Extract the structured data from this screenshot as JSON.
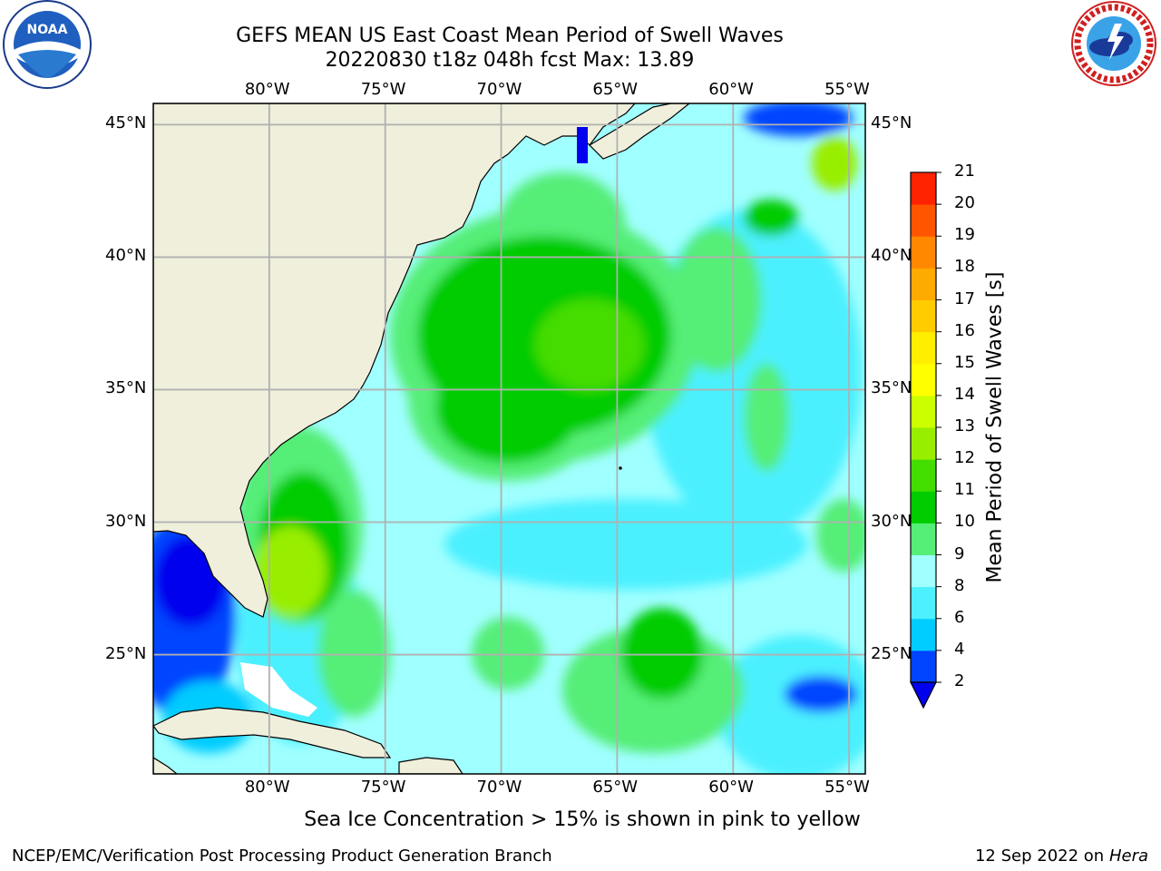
{
  "title": "GEFS MEAN US East Coast Mean Period of Swell Waves",
  "subtitle_line": "20220830 t18z 048h fcst   Max: 13.89",
  "ice_note": "Sea Ice Concentration > 15% is shown in pink to yellow",
  "footer": {
    "left": "NCEP/EMC/Verification Post Processing Product Generation Branch",
    "date": "12 Sep 2022 on",
    "host": "Hera"
  },
  "logos": {
    "noaa": {
      "icon": "noaa-logo-icon",
      "text": "NOAA"
    },
    "nws": {
      "icon": "nws-logo-icon"
    }
  },
  "map": {
    "lon_labels": [
      "80°W",
      "75°W",
      "70°W",
      "65°W",
      "60°W",
      "55°W"
    ],
    "lat_labels": [
      "45°N",
      "40°N",
      "35°N",
      "30°N",
      "25°N"
    ],
    "lon_values": [
      -80,
      -75,
      -70,
      -65,
      -60,
      -55
    ],
    "lat_values": [
      45,
      40,
      35,
      30,
      25
    ],
    "lon_range": [
      -85,
      -54.3
    ],
    "lat_range": [
      20.5,
      45.8
    ],
    "land_color": "#efefdc",
    "grid_color": "#b0b0b0"
  },
  "colorbar": {
    "label": "Mean Period of Swell Waves [s]",
    "ticks": [
      "2",
      "4",
      "6",
      "8",
      "9",
      "10",
      "11",
      "12",
      "13",
      "14",
      "15",
      "16",
      "17",
      "18",
      "19",
      "20",
      "21"
    ],
    "colors": [
      "#0044ff",
      "#00ccff",
      "#4cf0ff",
      "#a0ffff",
      "#55ee77",
      "#00cc00",
      "#44dd00",
      "#99ee00",
      "#ccff00",
      "#ffff00",
      "#ffee00",
      "#ffcc00",
      "#ffaa00",
      "#ff8800",
      "#ff5500",
      "#ff2200"
    ],
    "under_color": "#0000ee"
  }
}
